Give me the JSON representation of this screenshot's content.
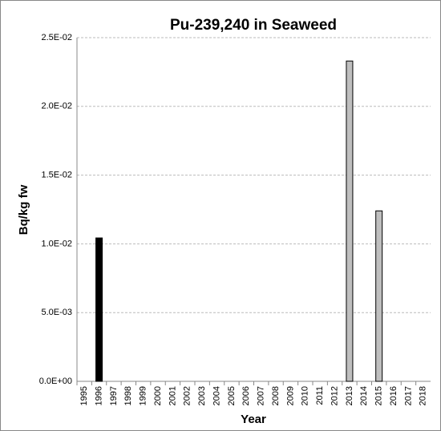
{
  "chart_data": {
    "type": "bar",
    "title": "Pu-239,240 in Seaweed",
    "x_label": "Year",
    "y_label": "Bq/kg fw",
    "categories": [
      "1995",
      "1996",
      "1997",
      "1998",
      "1999",
      "2000",
      "2001",
      "2002",
      "2003",
      "2004",
      "2005",
      "2006",
      "2007",
      "2008",
      "2009",
      "2010",
      "2011",
      "2012",
      "2013",
      "2014",
      "2015",
      "2016",
      "2017",
      "2018"
    ],
    "values": [
      null,
      0.01043,
      null,
      null,
      null,
      null,
      null,
      null,
      null,
      null,
      null,
      null,
      null,
      null,
      null,
      null,
      null,
      null,
      0.0233,
      null,
      0.0124,
      null,
      null,
      null
    ],
    "colors": [
      null,
      "#000000",
      null,
      null,
      null,
      null,
      null,
      null,
      null,
      null,
      null,
      null,
      null,
      null,
      null,
      null,
      null,
      null,
      "#bfbfbf",
      null,
      "#bfbfbf",
      null,
      null,
      null
    ],
    "ylim": [
      0,
      0.025
    ],
    "yticks": [
      {
        "value": 0,
        "label": "0.0E+00"
      },
      {
        "value": 0.005,
        "label": "5.0E-03"
      },
      {
        "value": 0.01,
        "label": "1.0E-02"
      },
      {
        "value": 0.015,
        "label": "1.5E-02"
      },
      {
        "value": 0.02,
        "label": "2.0E-02"
      },
      {
        "value": 0.025,
        "label": "2.5E-02"
      }
    ],
    "grid": true
  }
}
